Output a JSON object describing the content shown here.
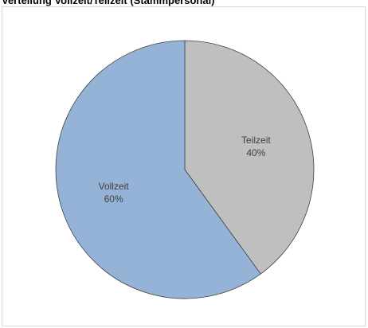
{
  "title": "Verteilung Vollzeit/Teilzeit (Stammpersonal)",
  "chart_data": {
    "type": "pie",
    "title": "Verteilung Vollzeit/Teilzeit (Stammpersonal)",
    "categories": [
      "Teilzeit",
      "Vollzeit"
    ],
    "values": [
      40,
      60
    ],
    "value_labels": [
      "40%",
      "60%"
    ],
    "colors": [
      "#bfbfbf",
      "#95b3d7"
    ],
    "legend": "none",
    "start_angle": "12 o'clock",
    "direction": "clockwise"
  }
}
